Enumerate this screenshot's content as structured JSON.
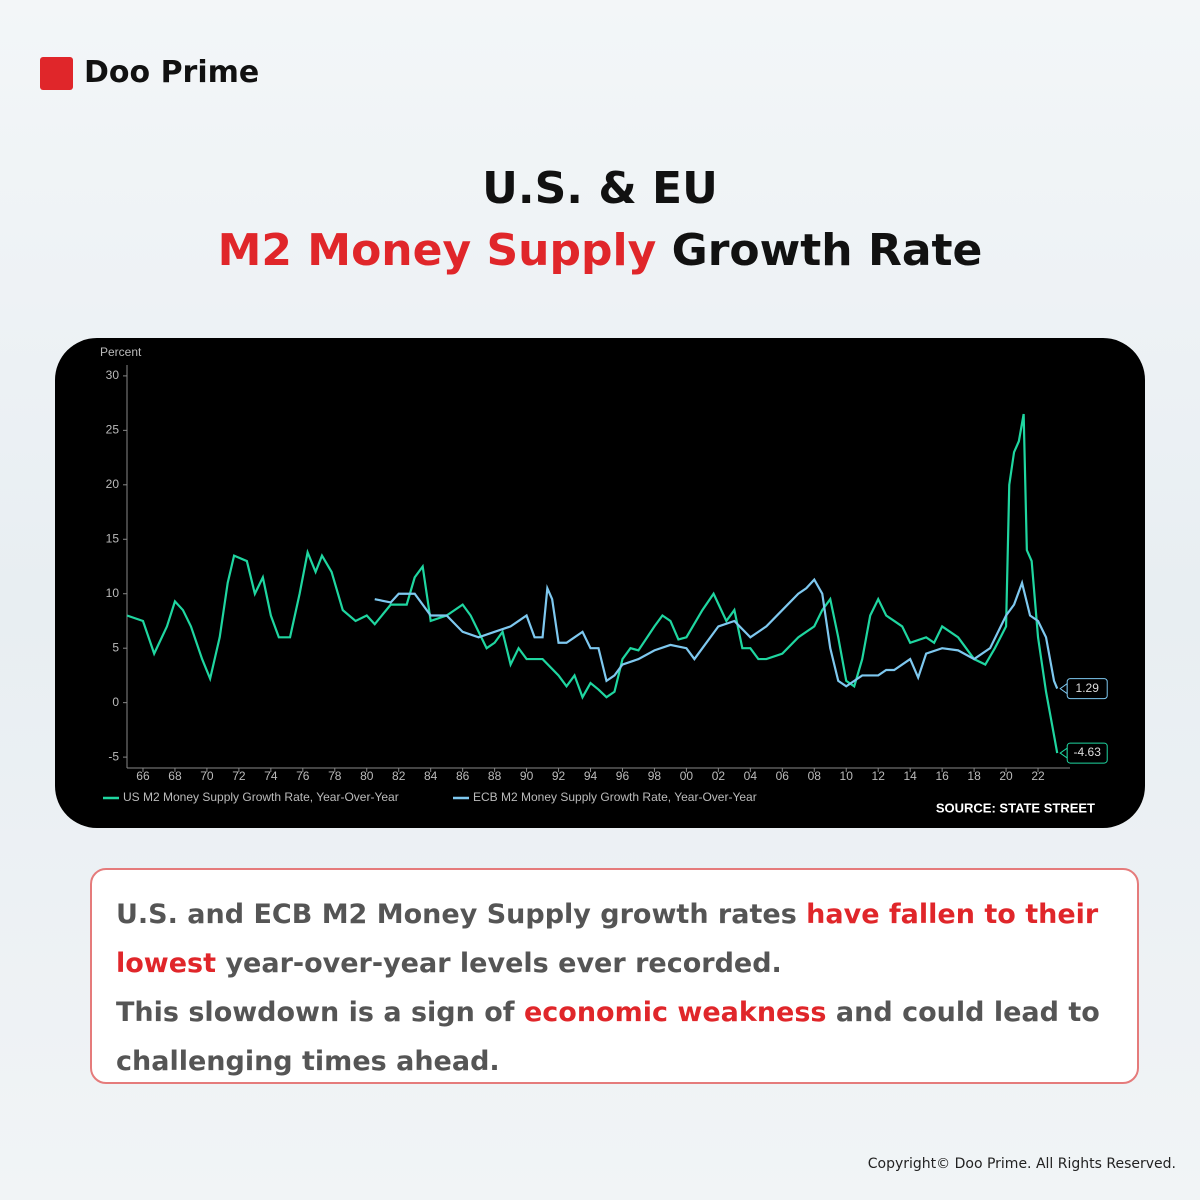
{
  "brand": "Doo Prime",
  "headline": {
    "line1": "U.S. & EU",
    "highlight": "M2 Money Supply",
    "rest": "Growth Rate"
  },
  "body": {
    "paragraphs": [
      [
        "U.S. and ECB M2 Money Supply growth rates ",
        "have fallen to their lowest",
        " year-over-year levels ever recorded."
      ],
      [
        "This slowdown  is a sign of ",
        "economic weakness",
        " and could lead to challenging times ahead."
      ]
    ]
  },
  "copyright": "Copyright© Doo Prime. All Rights Reserved.",
  "chart_data": {
    "type": "line",
    "y_label": "Percent",
    "source": "SOURCE: STATE STREET",
    "xlim": [
      1965,
      2024
    ],
    "ylim": [
      -6,
      31
    ],
    "yticks": [
      -5,
      0,
      5,
      10,
      15,
      20,
      25,
      30
    ],
    "xticks": [
      {
        "value": 1966,
        "label": "66"
      },
      {
        "value": 1968,
        "label": "68"
      },
      {
        "value": 1970,
        "label": "70"
      },
      {
        "value": 1972,
        "label": "72"
      },
      {
        "value": 1974,
        "label": "74"
      },
      {
        "value": 1976,
        "label": "76"
      },
      {
        "value": 1978,
        "label": "78"
      },
      {
        "value": 1980,
        "label": "80"
      },
      {
        "value": 1982,
        "label": "82"
      },
      {
        "value": 1984,
        "label": "84"
      },
      {
        "value": 1986,
        "label": "86"
      },
      {
        "value": 1988,
        "label": "88"
      },
      {
        "value": 1990,
        "label": "90"
      },
      {
        "value": 1992,
        "label": "92"
      },
      {
        "value": 1994,
        "label": "94"
      },
      {
        "value": 1996,
        "label": "96"
      },
      {
        "value": 1998,
        "label": "98"
      },
      {
        "value": 2000,
        "label": "00"
      },
      {
        "value": 2002,
        "label": "02"
      },
      {
        "value": 2004,
        "label": "04"
      },
      {
        "value": 2006,
        "label": "06"
      },
      {
        "value": 2008,
        "label": "08"
      },
      {
        "value": 2010,
        "label": "10"
      },
      {
        "value": 2012,
        "label": "12"
      },
      {
        "value": 2014,
        "label": "14"
      },
      {
        "value": 2016,
        "label": "16"
      },
      {
        "value": 2018,
        "label": "18"
      },
      {
        "value": 2020,
        "label": "20"
      },
      {
        "value": 2022,
        "label": "22"
      }
    ],
    "series": [
      {
        "name": "US M2 Money Supply Growth Rate, Year-Over-Year",
        "color": "#1fd6a0",
        "x": [
          1965,
          1966,
          1966.7,
          1967.5,
          1968,
          1968.5,
          1969,
          1969.7,
          1970.2,
          1970.8,
          1971.3,
          1971.7,
          1972.5,
          1973,
          1973.5,
          1974,
          1974.5,
          1975.2,
          1975.8,
          1976.3,
          1976.8,
          1977.2,
          1977.8,
          1978.5,
          1979.3,
          1980,
          1980.5,
          1981.5,
          1982.5,
          1983,
          1983.5,
          1984,
          1985,
          1986,
          1986.5,
          1987.5,
          1988,
          1988.5,
          1989,
          1989.5,
          1990,
          1991,
          1992,
          1992.5,
          1993,
          1993.5,
          1994,
          1994.5,
          1995,
          1995.5,
          1996,
          1996.5,
          1997,
          1998,
          1998.5,
          1999,
          1999.5,
          2000,
          2001,
          2001.7,
          2002.5,
          2003,
          2003.5,
          2004,
          2004.5,
          2005,
          2006,
          2007,
          2008,
          2008.5,
          2009,
          2009.5,
          2010,
          2010.5,
          2011,
          2011.5,
          2012,
          2012.5,
          2013,
          2013.5,
          2014,
          2015,
          2015.5,
          2016,
          2017,
          2018,
          2018.7,
          2019.3,
          2020,
          2020.2,
          2020.5,
          2020.8,
          2021.1,
          2021.3,
          2021.6,
          2022,
          2022.5,
          2023,
          2023.2
        ],
        "values": [
          8,
          7.5,
          4.5,
          7,
          9.3,
          8.5,
          7,
          4,
          2.2,
          6,
          11,
          13.5,
          13,
          10,
          11.5,
          8,
          6,
          6,
          10,
          13.8,
          12,
          13.5,
          12,
          8.5,
          7.5,
          8,
          7.2,
          9,
          9,
          11.5,
          12.5,
          7.5,
          8,
          9,
          8,
          5,
          5.5,
          6.5,
          3.5,
          5,
          4,
          4,
          2.5,
          1.5,
          2.5,
          0.5,
          1.8,
          1.2,
          0.5,
          1,
          4,
          5,
          4.8,
          7,
          8,
          7.5,
          5.8,
          6,
          8.5,
          10,
          7.5,
          8.5,
          5,
          5,
          4,
          4,
          4.5,
          6,
          7,
          8.5,
          9.5,
          6,
          2,
          1.5,
          4,
          8,
          9.5,
          8,
          7.5,
          7,
          5.5,
          6,
          5.5,
          7,
          6,
          4,
          3.5,
          5,
          7,
          20,
          23,
          24,
          26.5,
          14,
          13,
          6,
          1,
          -3,
          -4.63
        ]
      },
      {
        "name": "ECB M2 Money Supply Growth Rate, Year-Over-Year",
        "color": "#7ec8ef",
        "x": [
          1980.5,
          1981.5,
          1982,
          1983,
          1984,
          1985,
          1986,
          1987,
          1988,
          1989,
          1989.5,
          1990,
          1990.5,
          1991,
          1991.3,
          1991.6,
          1992,
          1992.5,
          1993,
          1993.5,
          1994,
          1994.5,
          1995,
          1995.5,
          1996,
          1997,
          1998,
          1999,
          2000,
          2000.5,
          2001,
          2002,
          2003,
          2004,
          2005,
          2006,
          2007,
          2007.5,
          2008,
          2008.5,
          2009,
          2009.5,
          2010,
          2010.5,
          2011,
          2012,
          2012.5,
          2013,
          2014,
          2014.5,
          2015,
          2016,
          2017,
          2018,
          2019,
          2020,
          2020.5,
          2021,
          2021.5,
          2022,
          2022.5,
          2023,
          2023.2
        ],
        "values": [
          9.5,
          9.2,
          10,
          10,
          8,
          8,
          6.5,
          6,
          6.5,
          7,
          7.5,
          8,
          6,
          6,
          10.5,
          9.5,
          5.5,
          5.5,
          6,
          6.5,
          5,
          5,
          2,
          2.5,
          3.5,
          4,
          4.8,
          5.3,
          5,
          4,
          5,
          7,
          7.5,
          6,
          7,
          8.5,
          10,
          10.5,
          11.3,
          10,
          5,
          2,
          1.5,
          2,
          2.5,
          2.5,
          3,
          3,
          4,
          2.3,
          4.5,
          5,
          4.8,
          4,
          5,
          8,
          9,
          11,
          8,
          7.5,
          6,
          2,
          1.29
        ]
      }
    ]
  }
}
